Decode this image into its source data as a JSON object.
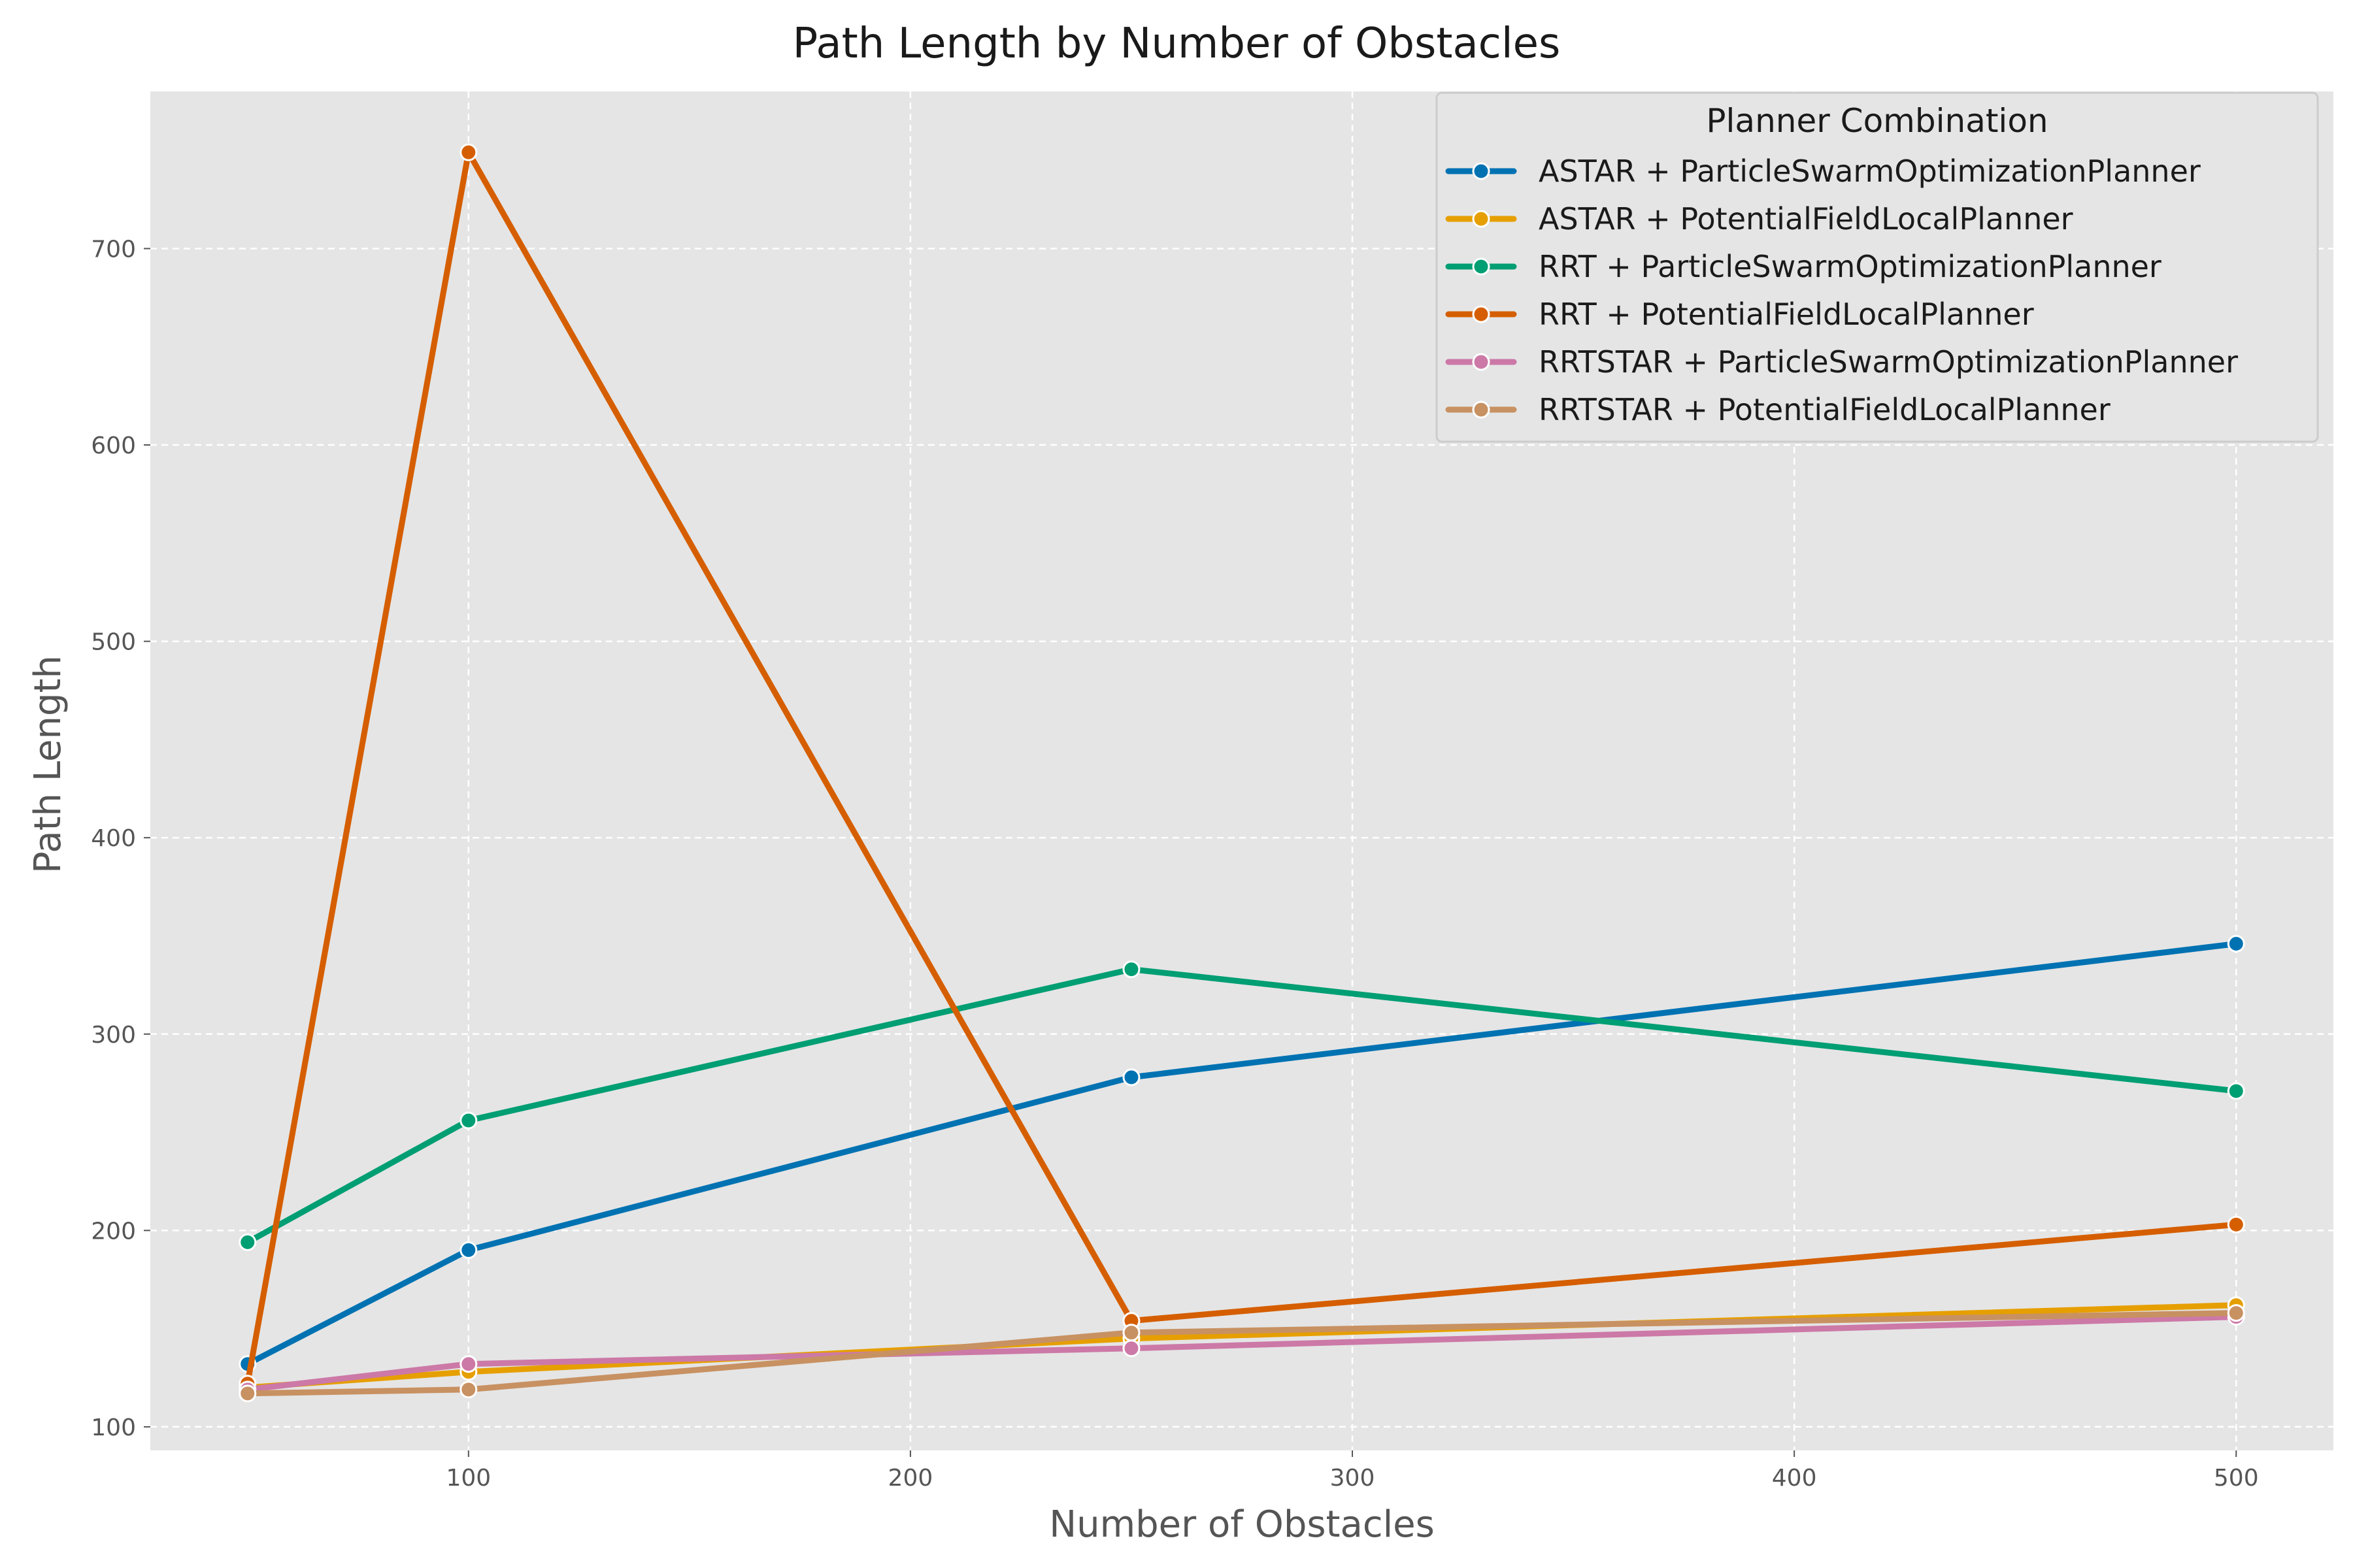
{
  "chart_data": {
    "type": "line",
    "title": "Path Length by Number of Obstacles",
    "xlabel": "Number of Obstacles",
    "ylabel": "Path Length",
    "xlim": [
      28,
      522
    ],
    "ylim": [
      88,
      780
    ],
    "xticks": [
      100,
      200,
      300,
      400,
      500
    ],
    "yticks": [
      100,
      200,
      300,
      400,
      500,
      600,
      700
    ],
    "xtick_labels": [
      "100",
      "200",
      "300",
      "400",
      "500"
    ],
    "ytick_labels": [
      "100",
      "200",
      "300",
      "400",
      "500",
      "600",
      "700"
    ],
    "grid": true,
    "legend": {
      "title": "Planner Combination",
      "placement": "top-right"
    },
    "x": [
      50,
      100,
      250,
      500
    ],
    "series": [
      {
        "name": "ASTAR + ParticleSwarmOptimizationPlanner",
        "color": "#0072b2",
        "values": [
          132,
          190,
          278,
          346
        ]
      },
      {
        "name": "ASTAR + PotentialFieldLocalPlanner",
        "color": "#e69f00",
        "values": [
          120,
          128,
          145,
          162
        ]
      },
      {
        "name": "RRT + ParticleSwarmOptimizationPlanner",
        "color": "#009e73",
        "values": [
          194,
          256,
          333,
          271
        ]
      },
      {
        "name": "RRT + PotentialFieldLocalPlanner",
        "color": "#d55e00",
        "values": [
          122,
          749,
          154,
          203
        ]
      },
      {
        "name": "RRTSTAR + ParticleSwarmOptimizationPlanner",
        "color": "#cc79a7",
        "values": [
          119,
          132,
          140,
          156
        ]
      },
      {
        "name": "RRTSTAR + PotentialFieldLocalPlanner",
        "color": "#c89162",
        "values": [
          117,
          119,
          148,
          158
        ]
      }
    ]
  }
}
